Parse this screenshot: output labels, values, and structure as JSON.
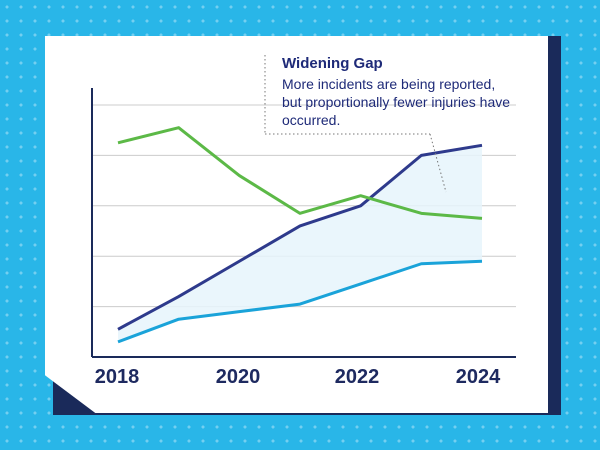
{
  "annotation": {
    "title": "Widening Gap",
    "text": "More incidents are being reported, but proportionally fewer injuries have occurred."
  },
  "colors": {
    "background": "#29b6e8",
    "card": "#ffffff",
    "card_shadow": "#1a2a5a",
    "incidents": "#2e3a8c",
    "injuries": "#1aa3d9",
    "green": "#5cb947",
    "gap_fill": "#e6f4fb",
    "grid": "#cccccc",
    "axis": "#1a2a5a"
  },
  "chart_data": {
    "type": "line",
    "x_ticks": [
      "2018",
      "2020",
      "2022",
      "2024"
    ],
    "xlim": [
      2018,
      2024
    ],
    "ylim": [
      0,
      5
    ],
    "grid": true,
    "gap_fill_between": [
      "dark-blue",
      "light-blue"
    ],
    "series": [
      {
        "key": "dark-blue",
        "color": "#2e3a8c",
        "x": [
          2018,
          2019,
          2020,
          2021,
          2022,
          2023,
          2024
        ],
        "y": [
          0.55,
          1.2,
          1.9,
          2.6,
          3.0,
          4.0,
          4.2
        ]
      },
      {
        "key": "light-blue",
        "color": "#1aa3d9",
        "x": [
          2018,
          2019,
          2020,
          2021,
          2022,
          2023,
          2024
        ],
        "y": [
          0.3,
          0.75,
          0.9,
          1.05,
          1.45,
          1.85,
          1.9
        ]
      },
      {
        "key": "green",
        "color": "#5cb947",
        "x": [
          2018,
          2019,
          2020,
          2021,
          2022,
          2023,
          2024
        ],
        "y": [
          4.25,
          4.55,
          3.6,
          2.85,
          3.2,
          2.85,
          2.75
        ]
      }
    ]
  }
}
